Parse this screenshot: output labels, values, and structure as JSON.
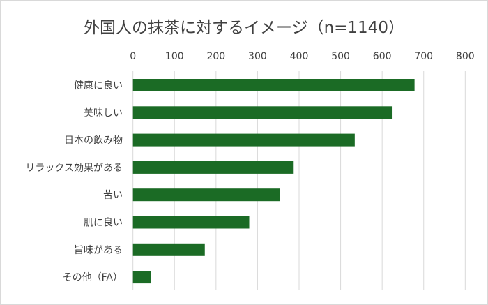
{
  "chart_data": {
    "type": "bar",
    "orientation": "horizontal",
    "title": "外国人の抹茶に対するイメージ（n=1140）",
    "categories": [
      "健康に良い",
      "美味しい",
      "日本の飲み物",
      "リラックス効果がある",
      "苦い",
      "肌に良い",
      "旨味がある",
      "その他（FA）"
    ],
    "values": [
      678,
      625,
      534,
      387,
      353,
      280,
      173,
      44
    ],
    "xlim": [
      0,
      800
    ],
    "xticks": [
      0,
      100,
      200,
      300,
      400,
      500,
      600,
      700,
      800
    ],
    "xaxis_position": "top",
    "grid": true,
    "legend": "none",
    "bar_color": "#1b6b25",
    "grid_color": "#d9d9d9"
  }
}
